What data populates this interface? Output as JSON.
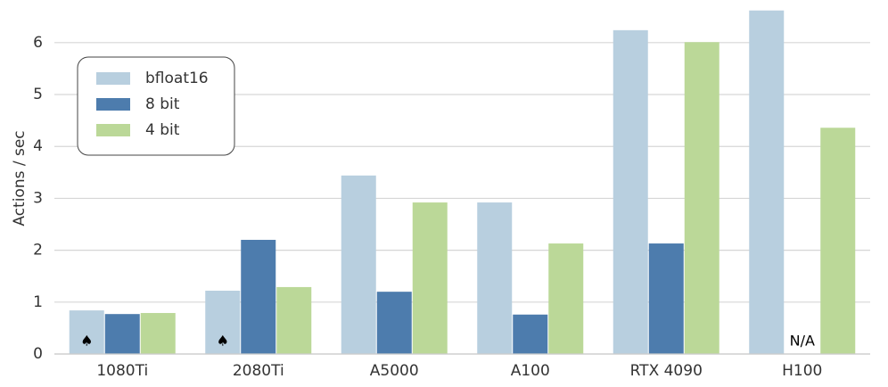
{
  "chart_data": {
    "type": "bar",
    "y_label": "Actions / sec",
    "categories": [
      "1080Ti",
      "2080Ti",
      "A5000",
      "A100",
      "RTX 4090",
      "H100"
    ],
    "series": [
      {
        "name": "bfloat16",
        "color": "#b8cfdf",
        "values": [
          0.84,
          1.22,
          3.44,
          2.92,
          6.24,
          6.62
        ]
      },
      {
        "name": "8 bit",
        "color": "#4d7cad",
        "values": [
          0.77,
          2.2,
          1.2,
          0.76,
          2.13,
          null
        ]
      },
      {
        "name": "4 bit",
        "color": "#bbd898",
        "values": [
          0.79,
          1.29,
          2.92,
          2.13,
          6.01,
          4.36
        ]
      }
    ],
    "annotations": [
      {
        "text": "♠",
        "category": "1080Ti",
        "series": "bfloat16"
      },
      {
        "text": "♠",
        "category": "2080Ti",
        "series": "bfloat16"
      },
      {
        "text": "N/A",
        "category": "H100",
        "series": "8 bit"
      }
    ],
    "ylim": [
      0,
      6.65
    ],
    "yticks": [
      0,
      1,
      2,
      3,
      4,
      5,
      6
    ],
    "grid": true,
    "legend": "upper left"
  }
}
